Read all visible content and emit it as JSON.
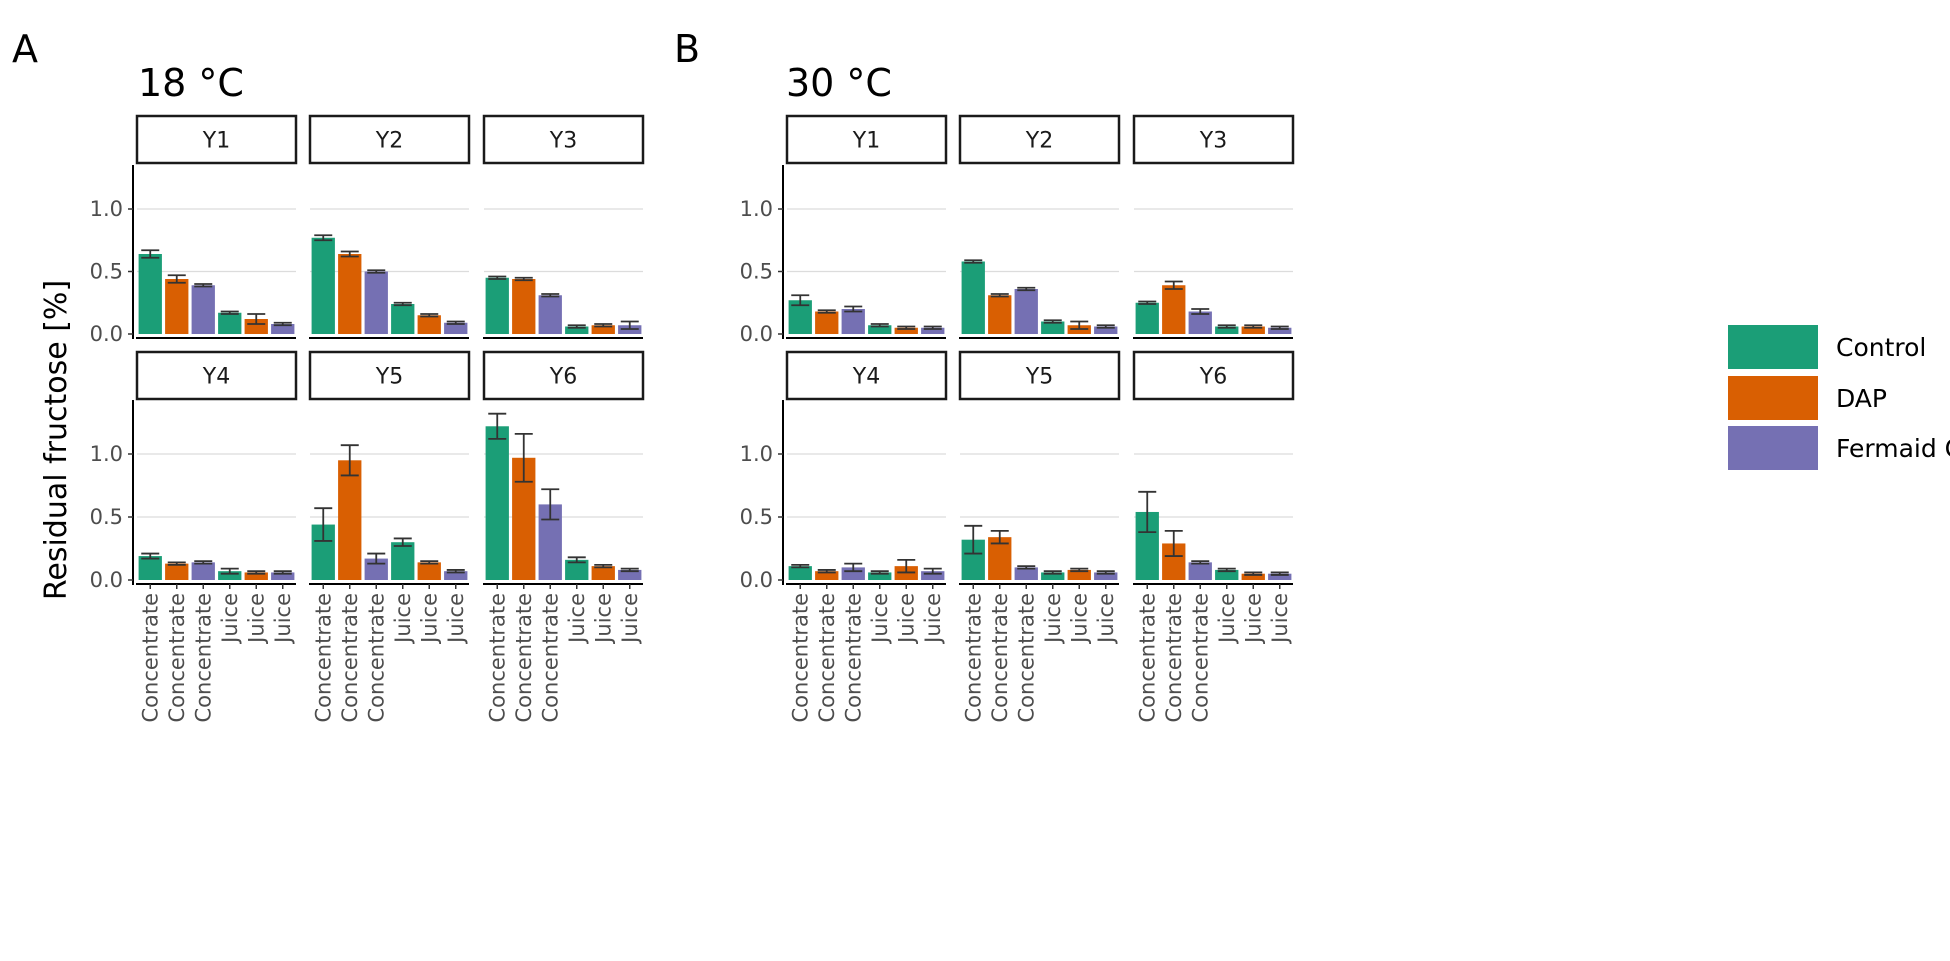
{
  "figure": {
    "ylabel": "Residual fructose [%]",
    "colors": {
      "Control": "#1b9e77",
      "DAP": "#d95f02",
      "Fermaid O": "#7570b3"
    }
  },
  "chart_data": [
    {
      "type": "bar",
      "panel_letter": "A",
      "title": "18 °C",
      "ylabel": "Residual fructose [%]",
      "ylim": [
        0,
        1.35
      ],
      "yticks": [
        "0.0",
        "0.5",
        "1.0"
      ],
      "grid": true,
      "categories": [
        "Concentrate",
        "Concentrate",
        "Concentrate",
        "Juice",
        "Juice",
        "Juice"
      ],
      "fill_legend": [
        "Control",
        "DAP",
        "Fermaid O",
        "Control",
        "DAP",
        "Fermaid O"
      ],
      "facets": [
        {
          "label": "Y1",
          "values": [
            0.64,
            0.44,
            0.39,
            0.17,
            0.12,
            0.08
          ],
          "errors": [
            0.03,
            0.03,
            0.01,
            0.01,
            0.04,
            0.01
          ]
        },
        {
          "label": "Y2",
          "values": [
            0.77,
            0.64,
            0.5,
            0.24,
            0.15,
            0.09
          ],
          "errors": [
            0.02,
            0.02,
            0.01,
            0.01,
            0.01,
            0.01
          ]
        },
        {
          "label": "Y3",
          "values": [
            0.45,
            0.44,
            0.31,
            0.06,
            0.07,
            0.07
          ],
          "errors": [
            0.01,
            0.01,
            0.01,
            0.01,
            0.01,
            0.03
          ]
        },
        {
          "label": "Y4",
          "values": [
            0.19,
            0.13,
            0.14,
            0.07,
            0.06,
            0.06
          ],
          "errors": [
            0.02,
            0.01,
            0.01,
            0.02,
            0.01,
            0.01
          ]
        },
        {
          "label": "Y5",
          "values": [
            0.44,
            0.95,
            0.17,
            0.3,
            0.14,
            0.07
          ],
          "errors": [
            0.13,
            0.12,
            0.04,
            0.03,
            0.01,
            0.01
          ]
        },
        {
          "label": "Y6",
          "values": [
            1.22,
            0.97,
            0.6,
            0.16,
            0.11,
            0.08
          ],
          "errors": [
            0.1,
            0.19,
            0.12,
            0.02,
            0.01,
            0.01
          ]
        }
      ]
    },
    {
      "type": "bar",
      "panel_letter": "B",
      "title": "30 °C",
      "ylim": [
        0,
        1.35
      ],
      "yticks": [
        "0.0",
        "0.5",
        "1.0"
      ],
      "grid": true,
      "categories": [
        "Concentrate",
        "Concentrate",
        "Concentrate",
        "Juice",
        "Juice",
        "Juice"
      ],
      "fill_legend": [
        "Control",
        "DAP",
        "Fermaid O",
        "Control",
        "DAP",
        "Fermaid O"
      ],
      "facets": [
        {
          "label": "Y1",
          "values": [
            0.27,
            0.18,
            0.2,
            0.07,
            0.05,
            0.05
          ],
          "errors": [
            0.04,
            0.01,
            0.02,
            0.01,
            0.01,
            0.01
          ]
        },
        {
          "label": "Y2",
          "values": [
            0.58,
            0.31,
            0.36,
            0.1,
            0.07,
            0.06
          ],
          "errors": [
            0.01,
            0.01,
            0.01,
            0.01,
            0.03,
            0.01
          ]
        },
        {
          "label": "Y3",
          "values": [
            0.25,
            0.39,
            0.18,
            0.06,
            0.06,
            0.05
          ],
          "errors": [
            0.01,
            0.03,
            0.02,
            0.01,
            0.01,
            0.01
          ]
        },
        {
          "label": "Y4",
          "values": [
            0.11,
            0.07,
            0.1,
            0.06,
            0.11,
            0.07
          ],
          "errors": [
            0.01,
            0.01,
            0.03,
            0.01,
            0.05,
            0.02
          ]
        },
        {
          "label": "Y5",
          "values": [
            0.32,
            0.34,
            0.1,
            0.06,
            0.08,
            0.06
          ],
          "errors": [
            0.11,
            0.05,
            0.01,
            0.01,
            0.01,
            0.01
          ]
        },
        {
          "label": "Y6",
          "values": [
            0.54,
            0.29,
            0.14,
            0.08,
            0.05,
            0.05
          ],
          "errors": [
            0.16,
            0.1,
            0.01,
            0.01,
            0.01,
            0.01
          ]
        }
      ]
    }
  ],
  "legend": {
    "placement": "right",
    "entries": [
      {
        "label": "Control",
        "color": "#1b9e77"
      },
      {
        "label": "DAP",
        "color": "#d95f02"
      },
      {
        "label": "Fermaid O",
        "color": "#7570b3"
      }
    ]
  }
}
